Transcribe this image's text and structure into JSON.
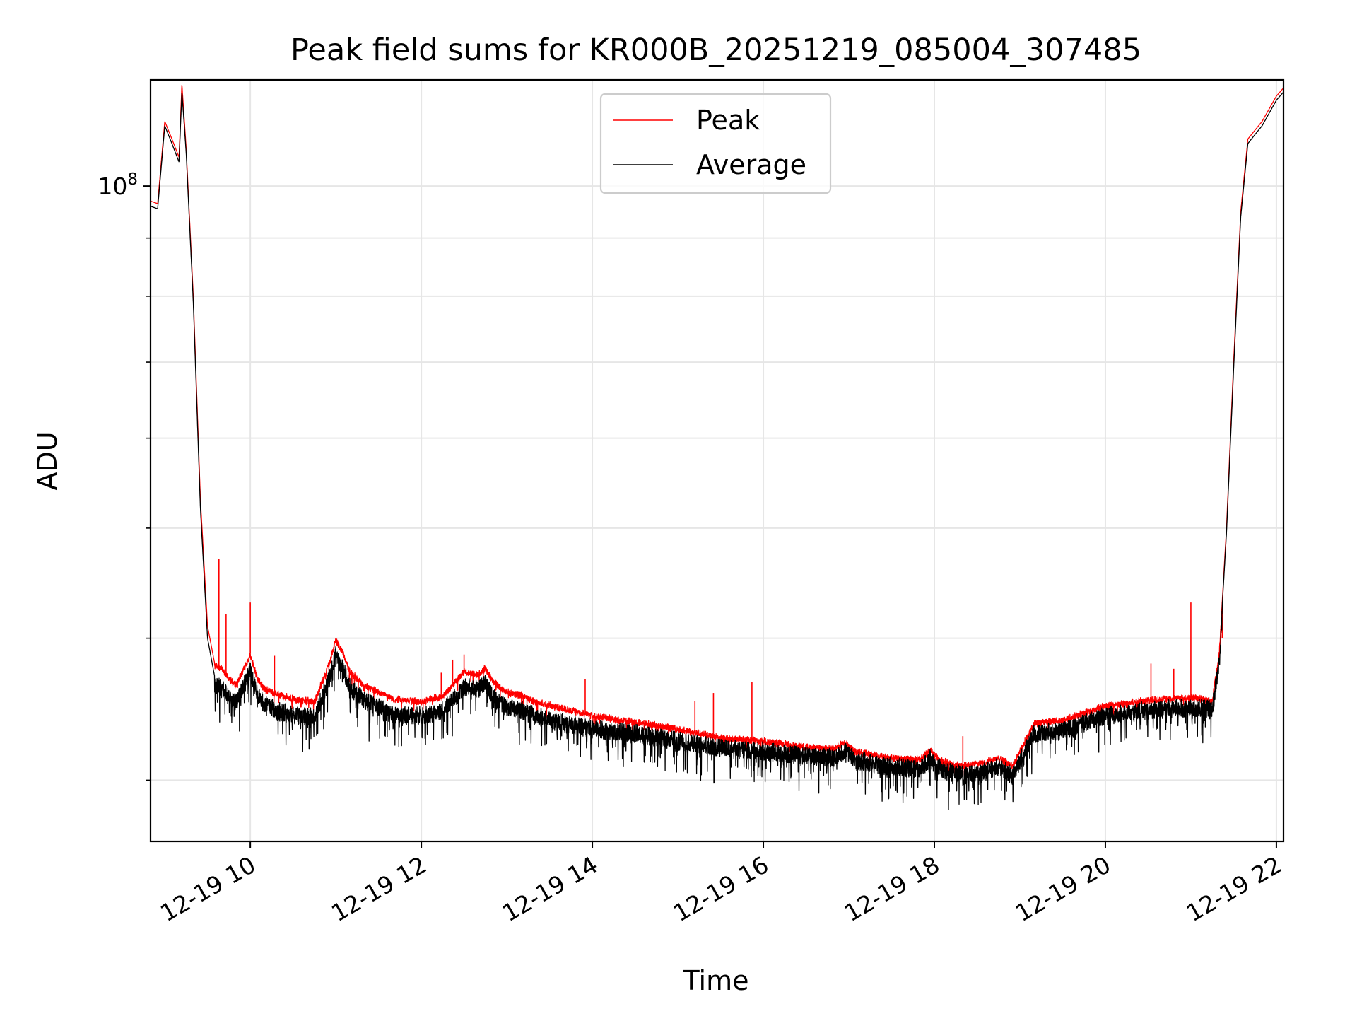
{
  "chart_data": {
    "type": "line",
    "title": "Peak field sums for KR000B_20251219_085004_307485",
    "xlabel": "Time",
    "ylabel": "ADU",
    "x_axis_type": "datetime",
    "y_scale": "log",
    "xlim": [
      "2025-12-19 08:50",
      "2025-12-19 22:05"
    ],
    "ylim": [
      26500000.0,
      124000000.0
    ],
    "x_ticks": [
      {
        "value": "2025-12-19 10:00",
        "label": "12-19 10"
      },
      {
        "value": "2025-12-19 12:00",
        "label": "12-19 12"
      },
      {
        "value": "2025-12-19 14:00",
        "label": "12-19 14"
      },
      {
        "value": "2025-12-19 16:00",
        "label": "12-19 16"
      },
      {
        "value": "2025-12-19 18:00",
        "label": "12-19 18"
      },
      {
        "value": "2025-12-19 20:00",
        "label": "12-19 20"
      },
      {
        "value": "2025-12-19 22:00",
        "label": "12-19 22"
      }
    ],
    "y_major_ticks": [
      {
        "value": 100000000,
        "base": "10",
        "exponent": "8"
      }
    ],
    "y_minor_ticks": [
      30000000,
      40000000,
      50000000,
      60000000,
      70000000,
      80000000,
      90000000
    ],
    "grid": true,
    "legend": {
      "placement": "upper center"
    },
    "series": [
      {
        "name": "Peak",
        "color": "#ff0000",
        "x": [
          "08:50",
          "08:55",
          "09:00",
          "09:05",
          "09:10",
          "09:12",
          "09:15",
          "09:20",
          "09:25",
          "09:30",
          "09:35",
          "09:40",
          "09:45",
          "09:50",
          "10:00",
          "10:05",
          "10:10",
          "10:20",
          "10:30",
          "10:45",
          "10:55",
          "11:00",
          "11:05",
          "11:10",
          "11:20",
          "11:40",
          "12:00",
          "12:15",
          "12:30",
          "12:40",
          "12:45",
          "12:50",
          "13:00",
          "13:10",
          "13:20",
          "13:40",
          "14:00",
          "14:30",
          "15:00",
          "15:30",
          "16:00",
          "16:30",
          "16:50",
          "16:57",
          "17:05",
          "17:30",
          "17:50",
          "17:57",
          "18:05",
          "18:20",
          "18:35",
          "18:45",
          "18:55",
          "19:10",
          "19:30",
          "19:45",
          "20:00",
          "20:30",
          "21:00",
          "21:15",
          "21:20",
          "21:25",
          "21:30",
          "21:35",
          "21:40",
          "21:45",
          "21:50",
          "22:00",
          "22:05"
        ],
        "y": [
          97000000,
          96500000,
          114000000,
          110000000,
          106000000,
          123000000,
          108000000,
          80000000,
          53000000,
          41000000,
          38000000,
          37800000,
          37000000,
          36500000,
          38800000,
          37000000,
          36200000,
          35800000,
          35500000,
          35300000,
          38000000,
          40000000,
          39000000,
          37500000,
          36500000,
          35500000,
          35300000,
          35700000,
          37500000,
          37300000,
          37800000,
          36800000,
          36000000,
          35800000,
          35300000,
          34800000,
          34300000,
          33900000,
          33400000,
          32800000,
          32600000,
          32200000,
          32100000,
          32500000,
          31900000,
          31500000,
          31400000,
          32000000,
          31300000,
          31000000,
          31200000,
          31500000,
          31000000,
          33800000,
          34000000,
          34500000,
          35000000,
          35400000,
          35600000,
          35400000,
          39000000,
          50000000,
          70000000,
          95000000,
          110000000,
          112000000,
          114000000,
          120000000,
          122000000
        ],
        "spikes": [
          {
            "x": "09:38",
            "y": 47000000
          },
          {
            "x": "09:43",
            "y": 42000000
          },
          {
            "x": "10:00",
            "y": 43000000
          },
          {
            "x": "10:17",
            "y": 38600000
          },
          {
            "x": "12:14",
            "y": 37300000
          },
          {
            "x": "12:22",
            "y": 38300000
          },
          {
            "x": "12:30",
            "y": 38700000
          },
          {
            "x": "13:55",
            "y": 36800000
          },
          {
            "x": "15:12",
            "y": 35200000
          },
          {
            "x": "15:25",
            "y": 35800000
          },
          {
            "x": "15:52",
            "y": 36600000
          },
          {
            "x": "17:30",
            "y": 31600000
          },
          {
            "x": "18:20",
            "y": 32800000
          },
          {
            "x": "20:32",
            "y": 38000000
          },
          {
            "x": "20:48",
            "y": 37600000
          },
          {
            "x": "21:00",
            "y": 43000000
          },
          {
            "x": "21:22",
            "y": 40000000
          }
        ]
      },
      {
        "name": "Average",
        "color": "#000000",
        "x": [
          "08:50",
          "08:55",
          "09:00",
          "09:05",
          "09:10",
          "09:12",
          "09:15",
          "09:20",
          "09:25",
          "09:30",
          "09:35",
          "09:40",
          "09:45",
          "09:50",
          "10:00",
          "10:05",
          "10:10",
          "10:20",
          "10:30",
          "10:45",
          "10:55",
          "11:00",
          "11:05",
          "11:10",
          "11:20",
          "11:40",
          "12:00",
          "12:15",
          "12:30",
          "12:40",
          "12:45",
          "12:50",
          "13:00",
          "13:10",
          "13:20",
          "13:40",
          "14:00",
          "14:30",
          "15:00",
          "15:30",
          "16:00",
          "16:30",
          "16:50",
          "16:57",
          "17:05",
          "17:30",
          "17:50",
          "17:57",
          "18:05",
          "18:20",
          "18:35",
          "18:45",
          "18:55",
          "19:10",
          "19:30",
          "19:45",
          "20:00",
          "20:30",
          "21:00",
          "21:15",
          "21:20",
          "21:25",
          "21:30",
          "21:35",
          "21:40",
          "21:45",
          "21:50",
          "22:00",
          "22:05"
        ],
        "y": [
          96000000,
          95500000,
          113000000,
          109000000,
          105000000,
          121000000,
          107000000,
          79000000,
          52000000,
          40000000,
          37000000,
          36800000,
          36000000,
          35700000,
          38000000,
          36300000,
          35500000,
          35000000,
          34800000,
          34600000,
          37300000,
          39300000,
          38200000,
          36800000,
          35800000,
          34800000,
          34700000,
          35100000,
          36800000,
          36700000,
          37100000,
          36100000,
          35300000,
          35100000,
          34700000,
          34200000,
          33800000,
          33500000,
          33000000,
          32500000,
          32300000,
          32000000,
          31900000,
          32300000,
          31700000,
          31300000,
          31200000,
          31800000,
          31100000,
          30800000,
          31000000,
          31300000,
          30800000,
          33500000,
          33700000,
          34200000,
          34700000,
          35100000,
          35300000,
          35200000,
          38700000,
          49500000,
          69000000,
          94000000,
          109000000,
          111000000,
          113000000,
          119000000,
          121000000
        ]
      }
    ]
  }
}
